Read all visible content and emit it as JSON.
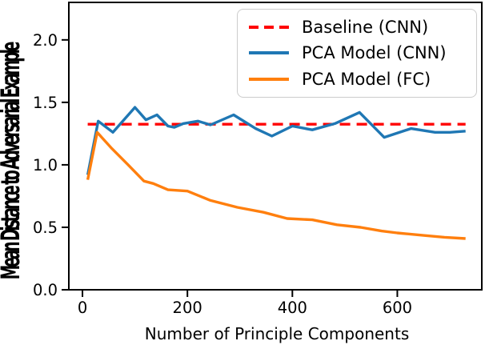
{
  "chart_data": {
    "type": "line",
    "title": "",
    "xlabel": "Number of Principle Components",
    "ylabel": "Mean Distance to Adversarial Example",
    "grid": false,
    "legend_position": "upper right",
    "xlim": [
      -26,
      761
    ],
    "ylim": [
      0,
      2.3
    ],
    "xticks": [
      {
        "v": 0,
        "label": "0"
      },
      {
        "v": 200,
        "label": "200"
      },
      {
        "v": 400,
        "label": "400"
      },
      {
        "v": 600,
        "label": "600"
      }
    ],
    "yticks": [
      {
        "v": 0.0,
        "label": "0.0"
      },
      {
        "v": 0.5,
        "label": "0.5"
      },
      {
        "v": 1.0,
        "label": "1.0"
      },
      {
        "v": 1.5,
        "label": "1.5"
      },
      {
        "v": 2.0,
        "label": "2.0"
      }
    ],
    "series": [
      {
        "name": "Baseline (CNN)",
        "color": "#ff0000",
        "style": "dashed",
        "key": "baseline-cnn-line",
        "points": [
          [
            10,
            1.325
          ],
          [
            730,
            1.325
          ]
        ]
      },
      {
        "name": "PCA Model (CNN)",
        "color": "#1f77b4",
        "style": "solid",
        "key": "pca-model-cnn-line",
        "points": [
          [
            10,
            0.92
          ],
          [
            30,
            1.35
          ],
          [
            58,
            1.26
          ],
          [
            100,
            1.46
          ],
          [
            121,
            1.36
          ],
          [
            142,
            1.4
          ],
          [
            163,
            1.31
          ],
          [
            175,
            1.3
          ],
          [
            192,
            1.33
          ],
          [
            220,
            1.35
          ],
          [
            244,
            1.32
          ],
          [
            288,
            1.4
          ],
          [
            330,
            1.29
          ],
          [
            361,
            1.23
          ],
          [
            400,
            1.31
          ],
          [
            438,
            1.28
          ],
          [
            481,
            1.33
          ],
          [
            528,
            1.42
          ],
          [
            575,
            1.22
          ],
          [
            626,
            1.29
          ],
          [
            672,
            1.26
          ],
          [
            700,
            1.26
          ],
          [
            730,
            1.27
          ]
        ]
      },
      {
        "name": "PCA Model (FC)",
        "color": "#ff7f0e",
        "style": "solid",
        "key": "pca-model-fc-line",
        "points": [
          [
            10,
            0.88
          ],
          [
            28,
            1.26
          ],
          [
            56,
            1.13
          ],
          [
            87,
            1.0
          ],
          [
            117,
            0.87
          ],
          [
            135,
            0.85
          ],
          [
            163,
            0.8
          ],
          [
            200,
            0.79
          ],
          [
            244,
            0.715
          ],
          [
            295,
            0.66
          ],
          [
            345,
            0.62
          ],
          [
            390,
            0.57
          ],
          [
            438,
            0.56
          ],
          [
            485,
            0.52
          ],
          [
            530,
            0.5
          ],
          [
            570,
            0.47
          ],
          [
            600,
            0.455
          ],
          [
            650,
            0.435
          ],
          [
            690,
            0.42
          ],
          [
            730,
            0.41
          ]
        ]
      }
    ]
  }
}
